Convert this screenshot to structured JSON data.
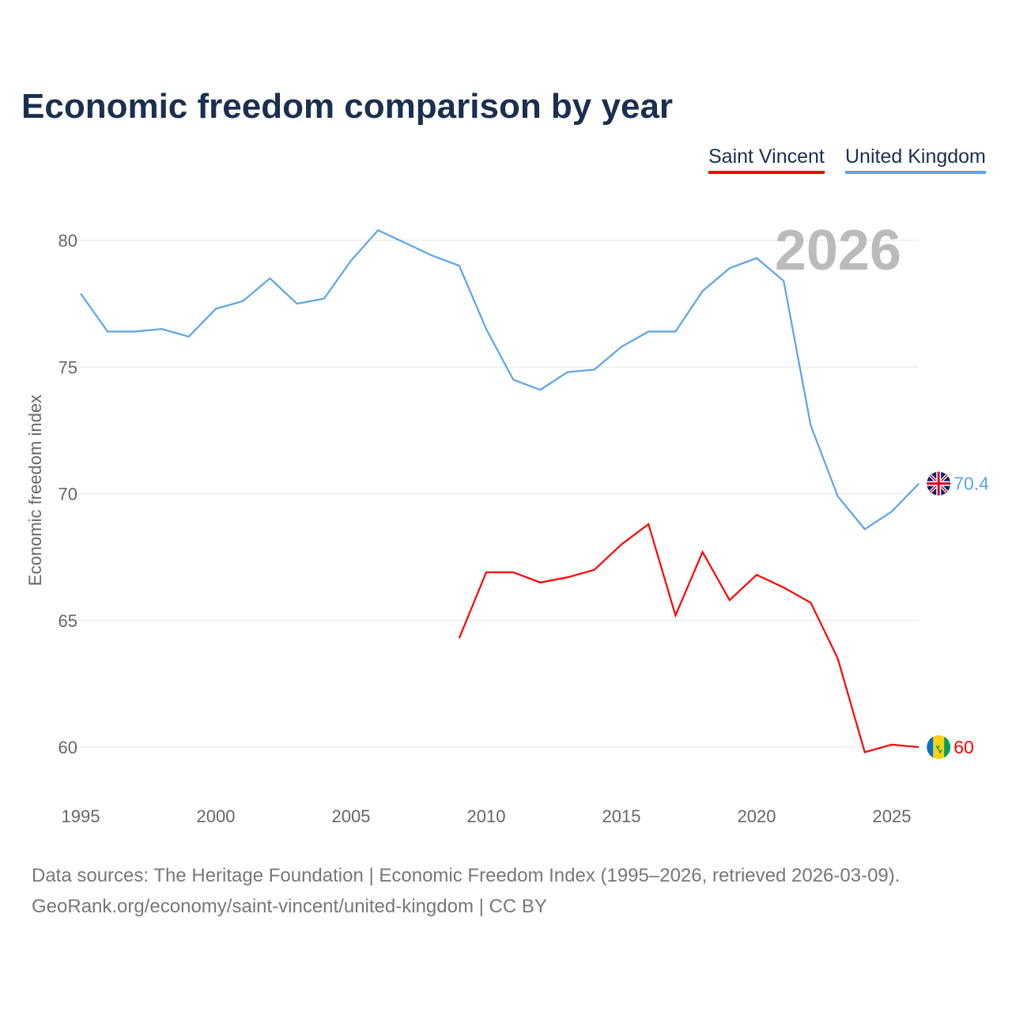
{
  "chart_data": {
    "type": "line",
    "title": "Economic freedom comparison by year",
    "xlabel": "",
    "ylabel": "Economic freedom index",
    "xlim": [
      1995,
      2026
    ],
    "ylim": [
      58,
      82
    ],
    "x_ticks": [
      1995,
      2000,
      2005,
      2010,
      2015,
      2020,
      2025
    ],
    "y_ticks": [
      60,
      65,
      70,
      75,
      80
    ],
    "grid": true,
    "legend_position": "top-right",
    "annotation_year": "2026",
    "series": [
      {
        "name": "Saint Vincent",
        "color": "#ff0000",
        "end_label": "60",
        "x": [
          2009,
          2010,
          2011,
          2012,
          2013,
          2014,
          2015,
          2016,
          2017,
          2018,
          2019,
          2020,
          2021,
          2022,
          2023,
          2024,
          2025,
          2026
        ],
        "values": [
          64.3,
          66.9,
          66.9,
          66.5,
          66.7,
          67.0,
          68.0,
          68.8,
          65.2,
          67.7,
          65.8,
          66.8,
          66.3,
          65.7,
          63.5,
          59.8,
          60.1,
          60.0
        ]
      },
      {
        "name": "United Kingdom",
        "color": "#5ba4e8",
        "end_label": "70.4",
        "x": [
          1995,
          1996,
          1997,
          1998,
          1999,
          2000,
          2001,
          2002,
          2003,
          2004,
          2005,
          2006,
          2007,
          2008,
          2009,
          2010,
          2011,
          2012,
          2013,
          2014,
          2015,
          2016,
          2017,
          2018,
          2019,
          2020,
          2021,
          2022,
          2023,
          2024,
          2025,
          2026
        ],
        "values": [
          77.9,
          76.4,
          76.4,
          76.5,
          76.2,
          77.3,
          77.6,
          78.5,
          77.5,
          77.7,
          79.2,
          80.4,
          79.9,
          79.4,
          79.0,
          76.5,
          74.5,
          74.1,
          74.8,
          74.9,
          75.8,
          76.4,
          76.4,
          78.0,
          78.9,
          79.3,
          78.4,
          72.7,
          69.9,
          68.6,
          69.3,
          70.4
        ]
      }
    ]
  },
  "footer": {
    "line1": "Data sources: The Heritage Foundation | Economic Freedom Index (1995–2026, retrieved 2026-03-09).",
    "line2": "GeoRank.org/economy/saint-vincent/united-kingdom | CC BY"
  }
}
